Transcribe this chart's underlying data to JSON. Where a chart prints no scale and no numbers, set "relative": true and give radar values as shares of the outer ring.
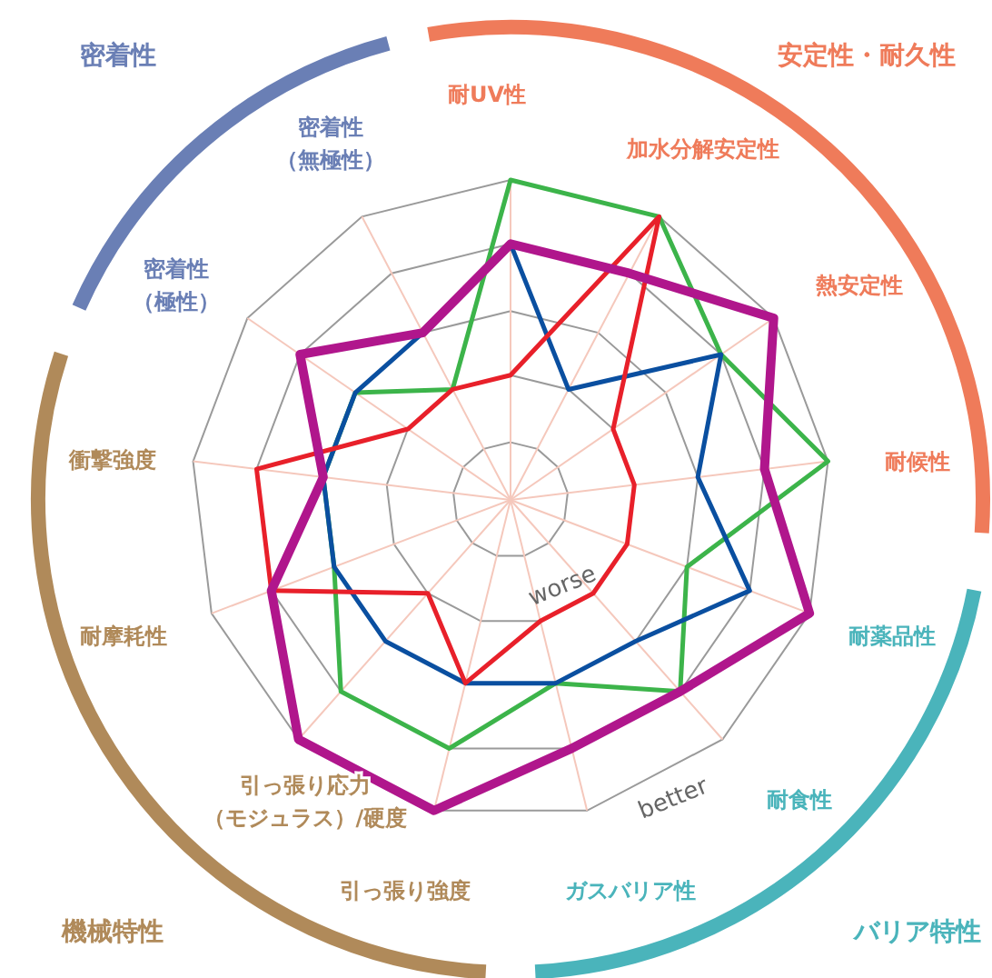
{
  "chart_data": {
    "type": "radar",
    "relative": true,
    "categories": [
      "耐UV性",
      "加水分解安定性",
      "熱安定性",
      "耐候性",
      "耐薬品性",
      "耐食性",
      "ガスバリア性",
      "引っ張り強度",
      "引っ張り応力（モジュラス）/硬度",
      "耐摩耗性",
      "衝撃強度",
      "密着性（極性）",
      "密着性（無極性）"
    ],
    "series": [
      {
        "color": "#3cb44a",
        "values": [
          1,
          1,
          0.8,
          1,
          0.59,
          0.8,
          0.59,
          0.8,
          0.8,
          0.59,
          0.59,
          0.59,
          0.39
        ]
      },
      {
        "color": "#0a4fa0",
        "values": [
          0.8,
          0.39,
          0.8,
          0.59,
          0.8,
          0.59,
          0.59,
          0.59,
          0.59,
          0.59,
          0.59,
          0.59,
          0.59
        ]
      },
      {
        "color": "#e8202a",
        "values": [
          0.39,
          1,
          0.39,
          0.39,
          0.39,
          0.39,
          0.39,
          0.59,
          0.39,
          0.8,
          0.8,
          0.39,
          0.39
        ]
      },
      {
        "color": "#b0168c",
        "values": [
          0.8,
          0.8,
          1,
          0.8,
          1,
          0.8,
          0.8,
          1,
          1,
          0.8,
          0.59,
          0.8,
          0.59
        ]
      }
    ],
    "annotations": [
      "密着性",
      "安定性・耐久性",
      "バリア特性",
      "機械特性",
      "worse",
      "better"
    ]
  }
}
